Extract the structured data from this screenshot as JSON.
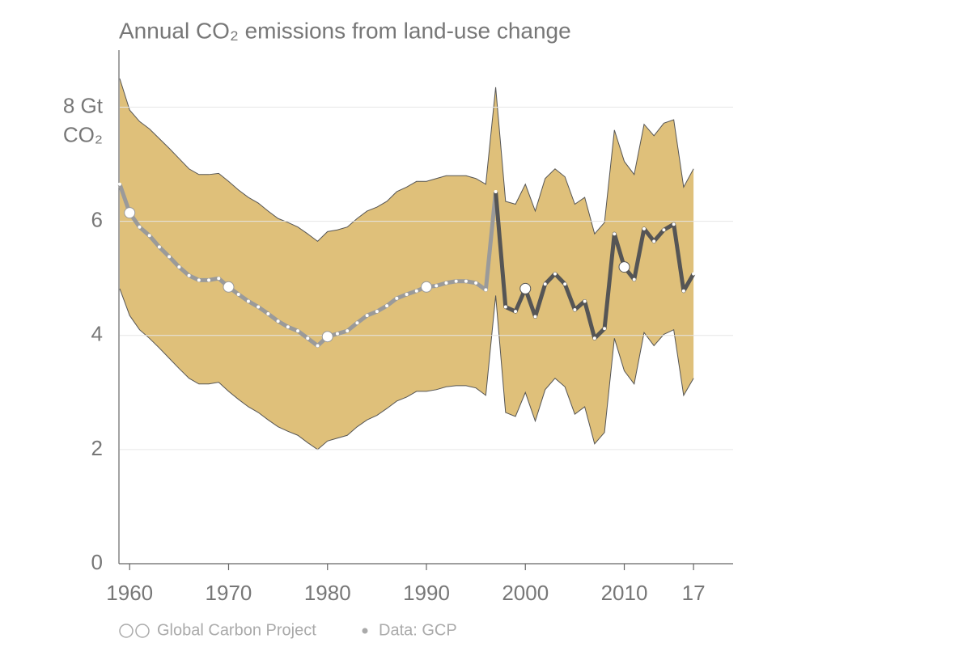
{
  "chart_data": {
    "type": "line",
    "title": "Annual CO₂ emissions from land-use change",
    "y_unit": "CO₂",
    "footer": {
      "source": "Global Carbon Project",
      "data": "Data: GCP"
    },
    "x": [
      1959,
      1960,
      1961,
      1962,
      1963,
      1964,
      1965,
      1966,
      1967,
      1968,
      1969,
      1970,
      1971,
      1972,
      1973,
      1974,
      1975,
      1976,
      1977,
      1978,
      1979,
      1980,
      1981,
      1982,
      1983,
      1984,
      1985,
      1986,
      1987,
      1988,
      1989,
      1990,
      1991,
      1992,
      1993,
      1994,
      1995,
      1996,
      1997,
      1998,
      1999,
      2000,
      2001,
      2002,
      2003,
      2004,
      2005,
      2006,
      2007,
      2008,
      2009,
      2010,
      2011,
      2012,
      2013,
      2014,
      2015,
      2016,
      2017
    ],
    "series": [
      {
        "color": "#9a9a9a",
        "values": [
          6.65,
          6.15,
          5.9,
          5.75,
          5.55,
          5.38,
          5.2,
          5.05,
          4.97,
          4.97,
          5.0,
          4.85,
          4.72,
          4.6,
          4.5,
          4.38,
          4.25,
          4.15,
          4.08,
          3.95,
          3.82,
          3.98,
          4.03,
          4.08,
          4.22,
          4.35,
          4.42,
          4.52,
          4.65,
          4.72,
          4.78,
          4.85,
          4.87,
          4.92,
          4.95,
          4.95,
          4.92,
          4.8,
          6.52,
          null,
          null,
          null,
          null,
          null,
          null,
          null,
          null,
          null,
          null,
          null,
          null,
          null,
          null,
          null,
          null,
          null,
          null,
          null,
          null
        ]
      },
      {
        "color": "#555555",
        "values": [
          null,
          null,
          null,
          null,
          null,
          null,
          null,
          null,
          null,
          null,
          null,
          null,
          null,
          null,
          null,
          null,
          null,
          null,
          null,
          null,
          null,
          null,
          null,
          null,
          null,
          null,
          null,
          null,
          null,
          null,
          null,
          null,
          null,
          null,
          null,
          null,
          null,
          null,
          6.52,
          4.5,
          4.42,
          4.82,
          4.33,
          4.9,
          5.08,
          4.9,
          4.45,
          4.6,
          3.95,
          4.12,
          5.78,
          5.2,
          4.98,
          5.87,
          5.65,
          5.85,
          5.95,
          4.78,
          5.08
        ]
      }
    ],
    "band": {
      "color": "#dfc07a",
      "upper": [
        8.5,
        7.95,
        7.75,
        7.62,
        7.45,
        7.28,
        7.1,
        6.92,
        6.82,
        6.82,
        6.84,
        6.7,
        6.55,
        6.42,
        6.32,
        6.18,
        6.05,
        5.98,
        5.9,
        5.78,
        5.65,
        5.82,
        5.85,
        5.9,
        6.05,
        6.18,
        6.25,
        6.35,
        6.52,
        6.6,
        6.7,
        6.7,
        6.75,
        6.8,
        6.8,
        6.8,
        6.75,
        6.65,
        8.35,
        6.35,
        6.3,
        6.65,
        6.18,
        6.75,
        6.92,
        6.78,
        6.3,
        6.42,
        5.78,
        5.98,
        7.6,
        7.05,
        6.82,
        7.7,
        7.5,
        7.72,
        7.78,
        6.6,
        6.92
      ],
      "lower": [
        4.82,
        4.35,
        4.1,
        3.95,
        3.78,
        3.6,
        3.42,
        3.25,
        3.15,
        3.15,
        3.18,
        3.02,
        2.88,
        2.75,
        2.65,
        2.52,
        2.4,
        2.32,
        2.25,
        2.12,
        2.0,
        2.15,
        2.2,
        2.25,
        2.4,
        2.52,
        2.6,
        2.72,
        2.85,
        2.92,
        3.02,
        3.02,
        3.05,
        3.1,
        3.12,
        3.12,
        3.08,
        2.95,
        4.7,
        2.65,
        2.58,
        3.0,
        2.5,
        3.05,
        3.25,
        3.1,
        2.62,
        2.75,
        2.1,
        2.3,
        3.95,
        3.38,
        3.15,
        4.05,
        3.82,
        4.02,
        4.1,
        2.95,
        3.25
      ]
    },
    "xlim": [
      1959,
      2021
    ],
    "ylim": [
      0,
      9
    ],
    "xticks": [
      1960,
      1970,
      1980,
      1990,
      2000,
      2010,
      {
        "value": 2017,
        "label": "17"
      }
    ],
    "yticks": [
      0,
      2,
      4,
      6,
      {
        "value": 8,
        "label": "8 Gt"
      }
    ],
    "grid": true
  }
}
